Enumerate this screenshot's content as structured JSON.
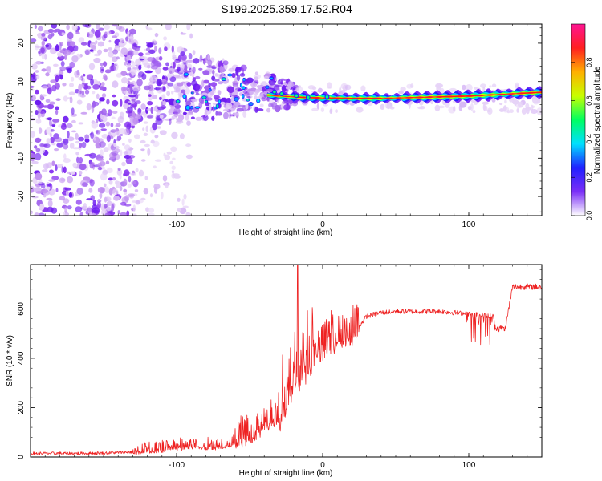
{
  "title": "S199.2025.359.17.52.R04",
  "chart_data": [
    {
      "type": "heatmap",
      "xlabel": "Height of straight line (km)",
      "ylabel": "Frequency (Hz)",
      "xlim": [
        -200,
        150
      ],
      "ylim": [
        -25,
        25
      ],
      "xticks": [
        -100,
        0,
        100
      ],
      "yticks": [
        -20,
        -10,
        0,
        10,
        20
      ],
      "ridge": {
        "x": [
          -40,
          -30,
          -20,
          -10,
          0,
          20,
          40,
          60,
          80,
          100,
          120,
          140,
          150
        ],
        "y": [
          6.5,
          6.2,
          6.0,
          5.8,
          5.7,
          5.6,
          5.6,
          5.8,
          6.0,
          6.2,
          6.6,
          7.0,
          7.2
        ]
      },
      "colorbar": {
        "label": "Normalized spectral amplitude",
        "range": [
          0.0,
          1.0
        ],
        "ticks": [
          "0.0",
          "0.2",
          "0.4",
          "0.6",
          "0.8"
        ],
        "tick_values": [
          0.0,
          0.2,
          0.4,
          0.6,
          0.8
        ],
        "colors": [
          "#ffffff",
          "#7b2ff7",
          "#2020ff",
          "#00e0ff",
          "#00ff60",
          "#c8ff00",
          "#ffb000",
          "#ff2020",
          "#ff1493"
        ]
      }
    },
    {
      "type": "line",
      "xlabel": "Height of straight line (km)",
      "ylabel": "SNR (10 * v/v)",
      "xlim": [
        -200,
        150
      ],
      "ylim": [
        0,
        780
      ],
      "xticks": [
        -100,
        0,
        100
      ],
      "yticks": [
        0,
        200,
        400,
        600
      ],
      "color": "#ee2222",
      "x": [
        -200,
        -160,
        -130,
        -110,
        -90,
        -70,
        -60,
        -50,
        -40,
        -30,
        -25,
        -20,
        -15,
        -10,
        -5,
        0,
        5,
        10,
        15,
        20,
        25,
        30,
        40,
        50,
        60,
        70,
        80,
        90,
        100,
        110,
        117,
        118,
        120,
        125,
        130,
        140,
        150
      ],
      "y": [
        15,
        15,
        20,
        30,
        45,
        40,
        60,
        90,
        130,
        170,
        250,
        320,
        340,
        390,
        420,
        440,
        460,
        470,
        480,
        500,
        530,
        570,
        585,
        590,
        590,
        590,
        590,
        585,
        580,
        575,
        570,
        530,
        520,
        520,
        690,
        690,
        690
      ],
      "spike": {
        "x": -17,
        "y": 780
      }
    }
  ]
}
